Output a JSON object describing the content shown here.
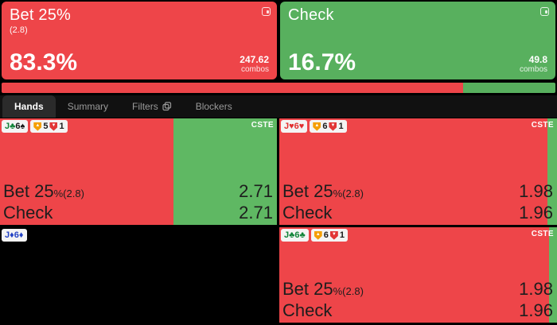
{
  "theme": {
    "red": "#ee4549",
    "green": "#58b05e",
    "cell_green": "#5fb863",
    "page_bg": "#000000",
    "tabbar_bg": "#111111",
    "active_tab_bg": "#2b2b2b",
    "inactive_tab_text": "#9a9a9a",
    "badge_bg": "#f4f4f4",
    "dark_text": "#1d1d1d",
    "orange_shield": "#f59f00",
    "red_shield": "#e23636",
    "club": "#0e8236",
    "spade": "#161616",
    "heart": "#e12f2f",
    "diamond": "#2342c4"
  },
  "suit_glyphs": {
    "club": "♣",
    "spade": "♠",
    "heart": "♥",
    "diamond": "♦"
  },
  "icons": {
    "card_corner": "frame-icon",
    "filters_tab": "copy-icon",
    "orange_badge": "shield-up-icon",
    "red_badge": "shield-down-icon"
  },
  "summary_cards": [
    {
      "label": "Bet 25%",
      "sub": "(2.8)",
      "pct": "83.3%",
      "combos": "247.62",
      "combos_label": "combos",
      "color": "#ee4549"
    },
    {
      "label": "Check",
      "sub": "",
      "pct": "16.7%",
      "combos": "49.8",
      "combos_label": "combos",
      "color": "#58b05e"
    }
  ],
  "strategy_bar": {
    "segments": [
      {
        "action": "Bet 25%",
        "pct": 83.3,
        "color": "#ee4549"
      },
      {
        "action": "Check",
        "pct": 16.7,
        "color": "#58b05e"
      }
    ]
  },
  "tabs": [
    {
      "label": "Hands",
      "active": true
    },
    {
      "label": "Summary",
      "active": false
    },
    {
      "label": "Filters",
      "active": false
    },
    {
      "label": "Blockers",
      "active": false
    }
  ],
  "hands": [
    {
      "cards": [
        {
          "rank": "J",
          "suit": "club"
        },
        {
          "rank": "6",
          "suit": "spade"
        }
      ],
      "shield_badges": [
        {
          "type": "orange",
          "value": "5"
        },
        {
          "type": "red",
          "value": "1"
        }
      ],
      "corner_label": "CSTE",
      "bg_red_pct": 62.5,
      "bg_green_pct": 37.5,
      "empty": false,
      "rows": [
        {
          "action": "Bet 25",
          "suffix": "%",
          "sub": "(2.8)",
          "value": "2.71"
        },
        {
          "action": "Check",
          "suffix": "",
          "sub": "",
          "value": "2.71"
        }
      ]
    },
    {
      "cards": [
        {
          "rank": "J",
          "suit": "heart"
        },
        {
          "rank": "6",
          "suit": "heart"
        }
      ],
      "shield_badges": [
        {
          "type": "orange",
          "value": "6"
        },
        {
          "type": "red",
          "value": "1"
        }
      ],
      "corner_label": "CSTE",
      "bg_red_pct": 96.5,
      "bg_green_pct": 3.5,
      "empty": false,
      "rows": [
        {
          "action": "Bet 25",
          "suffix": "%",
          "sub": "(2.8)",
          "value": "1.98"
        },
        {
          "action": "Check",
          "suffix": "",
          "sub": "",
          "value": "1.96"
        }
      ]
    },
    {
      "cards": [
        {
          "rank": "J",
          "suit": "diamond"
        },
        {
          "rank": "6",
          "suit": "diamond"
        }
      ],
      "shield_badges": [],
      "corner_label": "",
      "bg_red_pct": 0,
      "bg_green_pct": 0,
      "empty": true,
      "rows": []
    },
    {
      "cards": [
        {
          "rank": "J",
          "suit": "club"
        },
        {
          "rank": "6",
          "suit": "club"
        }
      ],
      "shield_badges": [
        {
          "type": "orange",
          "value": "6"
        },
        {
          "type": "red",
          "value": "1"
        }
      ],
      "corner_label": "CSTE",
      "bg_red_pct": 97.0,
      "bg_green_pct": 3.0,
      "empty": false,
      "rows": [
        {
          "action": "Bet 25",
          "suffix": "%",
          "sub": "(2.8)",
          "value": "1.98"
        },
        {
          "action": "Check",
          "suffix": "",
          "sub": "",
          "value": "1.96"
        }
      ]
    }
  ]
}
